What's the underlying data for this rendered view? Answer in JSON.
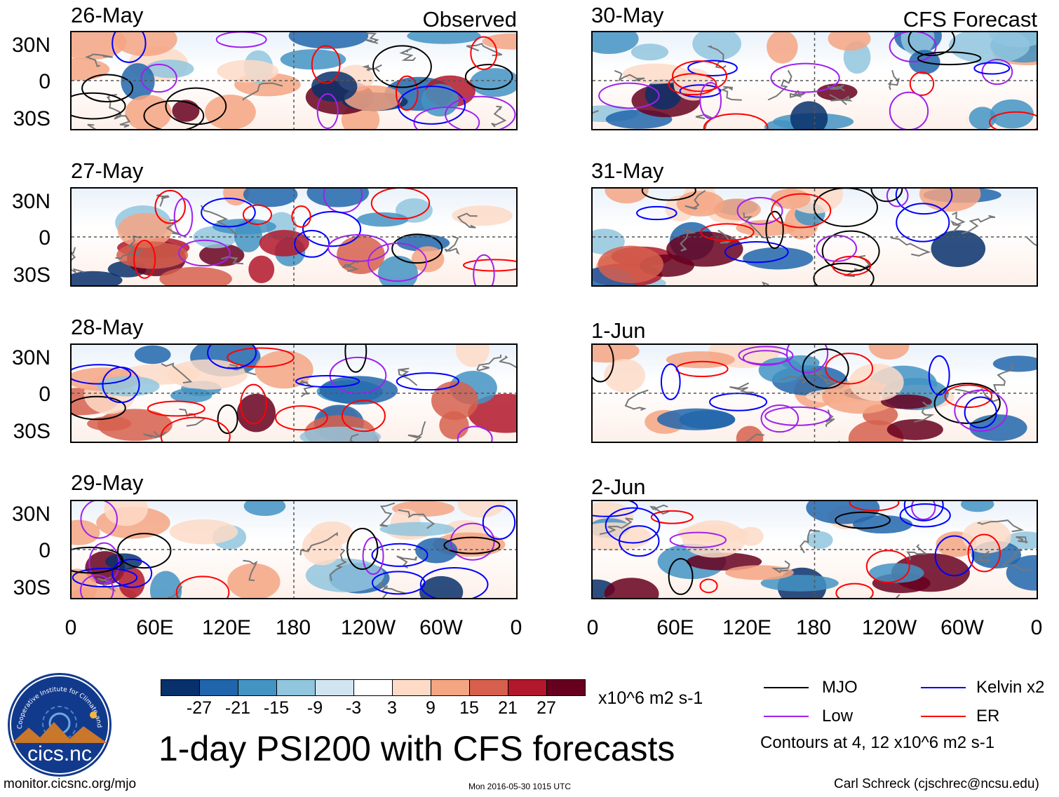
{
  "columns": [
    {
      "title": "Observed",
      "dates": [
        "26-May",
        "27-May",
        "28-May",
        "29-May"
      ]
    },
    {
      "title": "CFS Forecast",
      "dates": [
        "30-May",
        "31-May",
        "1-Jun",
        "2-Jun"
      ]
    }
  ],
  "lat_labels": [
    "30N",
    "0",
    "30S"
  ],
  "lon_labels": [
    "0",
    "60E",
    "120E",
    "180",
    "120W",
    "60W",
    "0"
  ],
  "colorbar": {
    "colors": [
      "#08306b",
      "#2166ac",
      "#4393c3",
      "#92c5de",
      "#d1e5f0",
      "#ffffff",
      "#fddbc7",
      "#f4a582",
      "#d6604d",
      "#b2182b",
      "#67001f"
    ],
    "ticks": [
      "-27",
      "-21",
      "-15",
      "-9",
      "-3",
      "3",
      "9",
      "15",
      "21",
      "27"
    ],
    "units": "x10^6 m2 s-1"
  },
  "legend": [
    {
      "label": "MJO",
      "color": "#000000"
    },
    {
      "label": "Kelvin x2",
      "color": "#0000ff"
    },
    {
      "label": "Low",
      "color": "#a020f0"
    },
    {
      "label": "ER",
      "color": "#ff0000"
    }
  ],
  "contour_note": "Contours at 4, 12 x10^6 m2 s-1",
  "main_title": "1-day PSI200 with CFS forecasts",
  "logo_text": "cics.nc",
  "logo_ring_text": "Cooperative Institute for Climate and Satellites",
  "footer": {
    "url": "monitor.cicsnc.org/mjo",
    "timestamp": "Mon 2016-05-30 1015 UTC",
    "author": "Carl Schreck (cjschrec@ncsu.edu)"
  }
}
